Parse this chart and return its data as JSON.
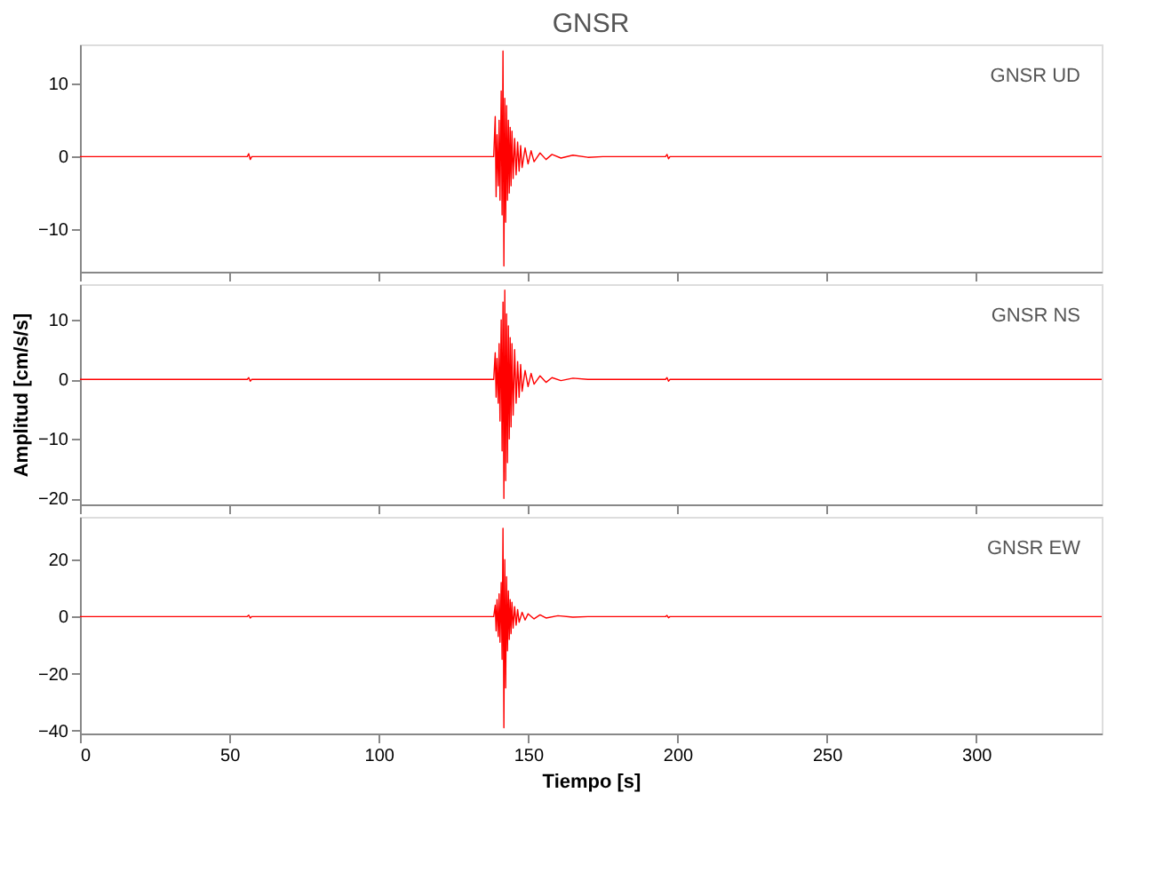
{
  "chart_data": [
    {
      "type": "line",
      "title": "GNSR",
      "xlim": [
        0,
        342
      ],
      "xticks": [
        0,
        50,
        100,
        150,
        200,
        250,
        300
      ],
      "ylim": [
        -15.8,
        15.4
      ],
      "yticks": [
        -10,
        0,
        10
      ],
      "tick_labels": "y",
      "grid": false,
      "series": [
        {
          "name": "GNSR  UD",
          "color": "#ff0000",
          "x": [
            0,
            56,
            56.5,
            57,
            57.5,
            138.5,
            139,
            139.3,
            139.6,
            140,
            140.3,
            140.6,
            141,
            141.3,
            141.6,
            141.9,
            142.2,
            142.5,
            142.8,
            143.1,
            143.4,
            143.7,
            144,
            144.3,
            144.6,
            145,
            145.5,
            146,
            146.5,
            147,
            147.5,
            148,
            149,
            150,
            151,
            152,
            154,
            156,
            158,
            161,
            165,
            170,
            175,
            196,
            196.5,
            197,
            197.5,
            342
          ],
          "values": [
            0,
            0,
            0.4,
            -0.4,
            0,
            0,
            5.5,
            -5.5,
            3,
            -4,
            5,
            -6,
            9,
            -8,
            14.5,
            -15,
            8,
            -9,
            7,
            -6,
            5,
            -5,
            4,
            -4,
            3.5,
            -3,
            2.5,
            -2.5,
            2,
            -2,
            1.5,
            -1.5,
            1.2,
            -1,
            0.8,
            -0.7,
            0.5,
            -0.4,
            0.3,
            -0.2,
            0.2,
            -0.1,
            0,
            0,
            0.3,
            -0.3,
            0,
            0
          ]
        }
      ]
    },
    {
      "type": "line",
      "xlim": [
        0,
        342
      ],
      "xticks": [
        0,
        50,
        100,
        150,
        200,
        250,
        300
      ],
      "ylim": [
        -21,
        16
      ],
      "yticks": [
        -20,
        -10,
        0,
        10
      ],
      "tick_labels": "y",
      "grid": false,
      "ylabel": "Amplitud  [cm/s/s]",
      "series": [
        {
          "name": "GNSR  NS",
          "color": "#ff0000",
          "x": [
            0,
            56,
            56.5,
            57,
            57.5,
            138.5,
            139,
            139.3,
            139.6,
            140,
            140.3,
            140.6,
            141,
            141.3,
            141.6,
            141.9,
            142.2,
            142.5,
            142.8,
            143.1,
            143.4,
            143.7,
            144,
            144.3,
            144.6,
            145,
            145.5,
            146,
            146.5,
            147,
            147.5,
            148,
            149,
            150,
            151,
            152,
            154,
            156,
            158,
            161,
            165,
            170,
            196,
            196.5,
            197,
            197.5,
            342
          ],
          "values": [
            0,
            0,
            0.3,
            -0.3,
            0,
            0,
            4.5,
            -3,
            3.5,
            -4,
            6,
            -7,
            10,
            -12,
            13,
            -20,
            15,
            -17,
            11,
            -14,
            9,
            -10,
            7,
            -8,
            6,
            -6,
            5,
            -4,
            3,
            -3,
            2.5,
            -2,
            1.5,
            -1.2,
            1,
            -0.8,
            0.6,
            -0.5,
            0.3,
            -0.2,
            0.2,
            0,
            0,
            0.3,
            -0.3,
            0,
            0
          ]
        }
      ]
    },
    {
      "type": "line",
      "xlim": [
        0,
        342
      ],
      "xticks": [
        0,
        50,
        100,
        150,
        200,
        250,
        300
      ],
      "ylim": [
        -41,
        35
      ],
      "yticks": [
        -40,
        -20,
        0,
        20
      ],
      "grid": false,
      "xlabel": "Tiempo  [s]",
      "series": [
        {
          "name": "GNSR  EW",
          "color": "#ff0000",
          "x": [
            0,
            56,
            56.5,
            57,
            57.5,
            138.5,
            139,
            139.3,
            139.6,
            140,
            140.3,
            140.6,
            141,
            141.3,
            141.6,
            141.9,
            142.2,
            142.5,
            142.8,
            143.1,
            143.4,
            143.7,
            144,
            144.3,
            144.6,
            145,
            145.5,
            146,
            146.5,
            147,
            148,
            149,
            150,
            152,
            154,
            156,
            160,
            165,
            170,
            196,
            196.5,
            197,
            197.5,
            342
          ],
          "values": [
            0,
            0,
            0.5,
            -0.5,
            0,
            0,
            4,
            -5,
            6,
            -7,
            8,
            -9,
            12,
            -15,
            31,
            -39,
            20,
            -25,
            14,
            -12,
            9,
            -8,
            6,
            -6,
            5,
            -4,
            3.5,
            -3,
            2.5,
            -2,
            1.5,
            -1.2,
            1,
            -0.8,
            0.6,
            -0.5,
            0.3,
            -0.2,
            0,
            0,
            0.4,
            -0.4,
            0,
            0
          ]
        }
      ]
    }
  ]
}
